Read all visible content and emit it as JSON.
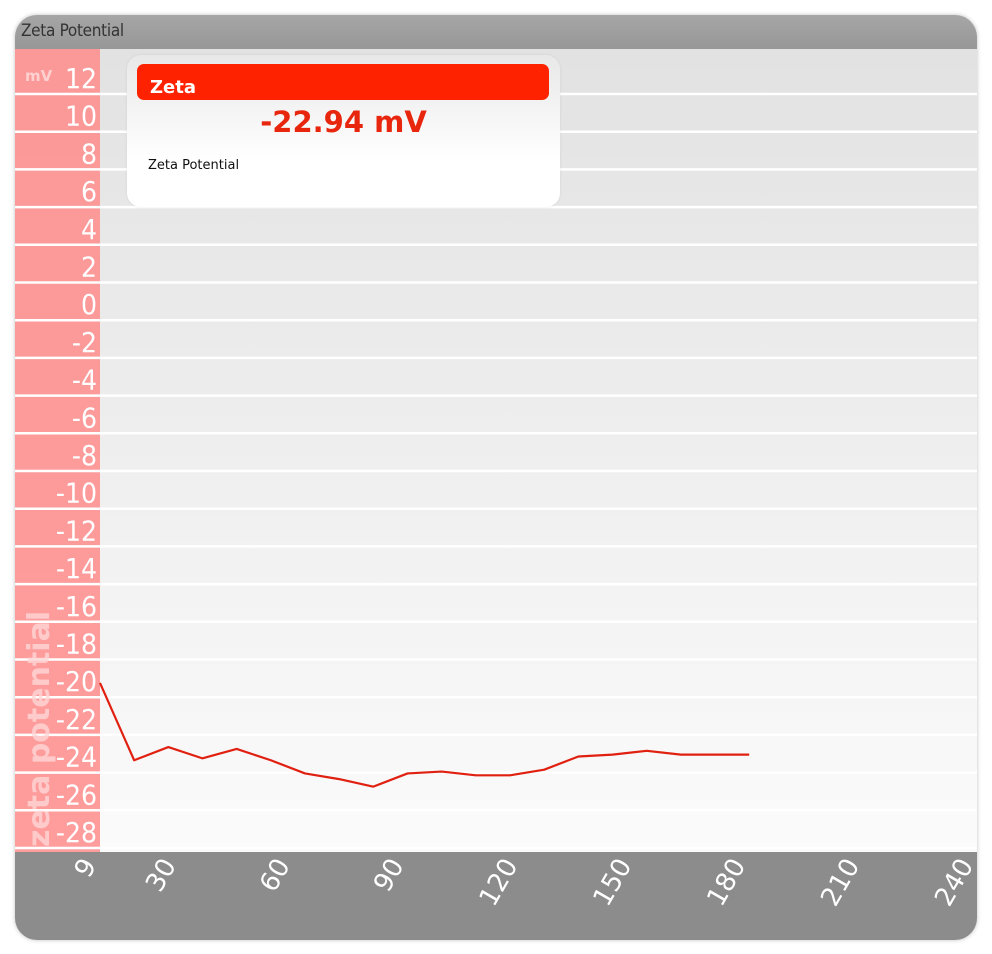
{
  "window": {
    "title": "Zeta Potential"
  },
  "legend": {
    "header": "Zeta",
    "value": "-22.94 mV",
    "label": "Zeta Potential"
  },
  "colors": {
    "line": "#e02010",
    "axis_band": "#ff8c8c",
    "x_band": "#8c8c8c",
    "legend_header": "#ff2200"
  },
  "chart_data": {
    "type": "line",
    "title": "Zeta Potential",
    "ylabel": "zeta potential",
    "yunit": "mV",
    "ylim": [
      -28,
      12
    ],
    "yticks": [
      12,
      10,
      8,
      6,
      4,
      2,
      0,
      -2,
      -4,
      -6,
      -8,
      -10,
      -12,
      -14,
      -16,
      -18,
      -20,
      -22,
      -24,
      -26,
      -28
    ],
    "xlim": [
      9,
      240
    ],
    "xticks": [
      9,
      30,
      60,
      90,
      120,
      150,
      180,
      210,
      240
    ],
    "grid": true,
    "series": [
      {
        "name": "Zeta Potential",
        "x": [
          9,
          18,
          27,
          36,
          45,
          54,
          63,
          72,
          81,
          90,
          99,
          108,
          117,
          126,
          135,
          144,
          153,
          162,
          171,
          180
        ],
        "y": [
          -20.2,
          -24.3,
          -23.6,
          -24.2,
          -23.7,
          -24.3,
          -25.0,
          -25.3,
          -25.7,
          -25.0,
          -24.9,
          -25.1,
          -25.1,
          -24.8,
          -24.1,
          -24.0,
          -23.8,
          -24.0,
          -24.0,
          -24.0
        ]
      }
    ]
  }
}
